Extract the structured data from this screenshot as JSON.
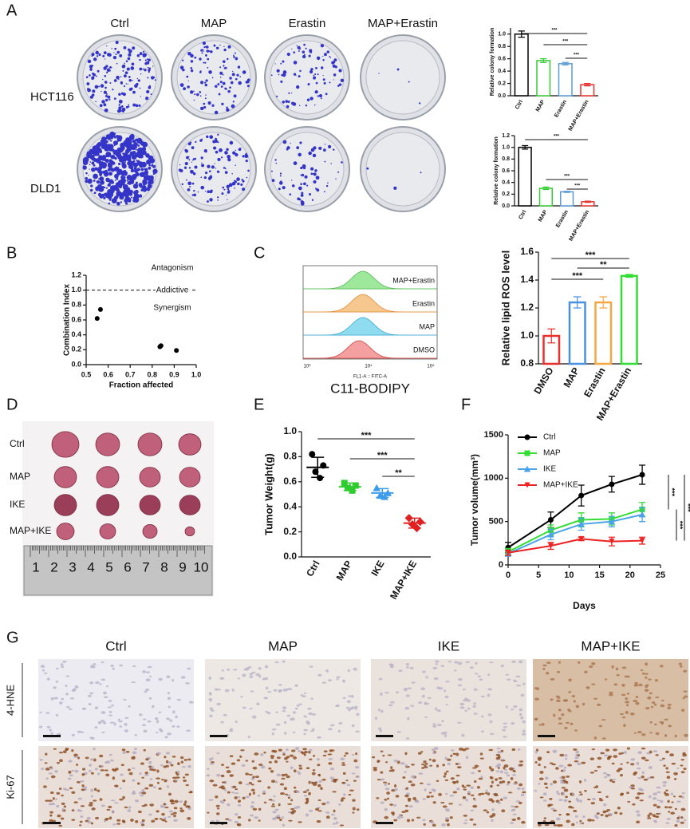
{
  "panels": [
    "A",
    "B",
    "C",
    "D",
    "E",
    "F",
    "G"
  ],
  "colony": {
    "columns": [
      "Ctrl",
      "MAP",
      "Erastin",
      "MAP+Erastin"
    ],
    "rows": [
      "HCT116",
      "DLD1"
    ]
  },
  "flow": {
    "samples": [
      "MAP+Erastin",
      "Erastin",
      "MAP",
      "DMSO"
    ],
    "x_label": "FL1-A :: FITC-A",
    "x_ticks": [
      "10³",
      "10⁴",
      "10⁵"
    ],
    "title": "C11-BODIPY"
  },
  "tumors": {
    "rows": [
      "Ctrl",
      "MAP",
      "IKE",
      "MAP+IKE"
    ],
    "ruler": [
      "1",
      "2",
      "3",
      "4",
      "5",
      "6",
      "7",
      "8",
      "9",
      "10"
    ]
  },
  "ihc": {
    "columns": [
      "Ctrl",
      "MAP",
      "IKE",
      "MAP+IKE"
    ],
    "rows": [
      "4-HNE",
      "Ki-67"
    ]
  },
  "chart_data": [
    {
      "type": "bar",
      "y_label": "Relative colony formation",
      "categories": [
        "Ctrl",
        "MAP",
        "Erastin",
        "MAP+Erastin"
      ],
      "values": [
        1.0,
        0.57,
        0.52,
        0.18
      ],
      "errors": [
        0.05,
        0.03,
        0.02,
        0.02
      ],
      "colors": [
        "#000000",
        "#33cc33",
        "#5b9bd5",
        "#e8312f"
      ],
      "ylim": [
        0,
        1.1
      ],
      "yticks": [
        {
          "value": 0,
          "label": "0.0"
        },
        0.2,
        0.4,
        0.6,
        0.8,
        {
          "value": 1,
          "label": "1.0"
        }
      ],
      "annotations": [
        "***",
        "***",
        "***"
      ]
    },
    {
      "type": "bar",
      "y_label": "Relative colony formation",
      "categories": [
        "Ctrl",
        "MAP",
        "Erastin",
        "MAP+Erastin"
      ],
      "values": [
        1.0,
        0.3,
        0.24,
        0.07
      ],
      "errors": [
        0.03,
        0.02,
        0.01,
        0.01
      ],
      "colors": [
        "#000000",
        "#33cc33",
        "#5b9bd5",
        "#e8312f"
      ],
      "ylim": [
        0,
        1.2
      ],
      "yticks": [
        {
          "value": 0,
          "label": "0.0"
        },
        0.2,
        0.4,
        0.6,
        0.8,
        {
          "value": 1,
          "label": "1.0"
        },
        1.2
      ],
      "annotations": [
        "***",
        "***",
        "***"
      ]
    },
    {
      "type": "scatter",
      "y_label": "Combination Index",
      "x_label": "Fraction affected",
      "x": [
        0.55,
        0.565,
        0.835,
        0.84,
        0.91
      ],
      "values": [
        0.62,
        0.74,
        0.24,
        0.255,
        0.19
      ],
      "color": "#000000",
      "xlim": [
        0.5,
        1.0
      ],
      "xticks": [
        0.5,
        0.6,
        0.7,
        0.8,
        0.9,
        {
          "value": 1,
          "label": "1.0"
        }
      ],
      "ylim": [
        0,
        1.2
      ],
      "yticks": [
        {
          "value": 0,
          "label": "0.0"
        },
        0.2,
        0.4,
        0.6,
        0.8,
        {
          "value": 1,
          "label": "1.0"
        },
        1.2
      ],
      "hline": 1,
      "annotations": [
        "Antagonism",
        "Addictive",
        "Synergism"
      ]
    },
    {
      "type": "bar",
      "y_label": "Relative lipid ROS level",
      "categories": [
        "DMSO",
        "MAP",
        "Erastin",
        "MAP+Erastin"
      ],
      "values": [
        1.0,
        1.24,
        1.24,
        1.43
      ],
      "errors": [
        0.05,
        0.04,
        0.04,
        0.01
      ],
      "colors": [
        "#e8312f",
        "#4a90e2",
        "#f5a742",
        "#33dd33"
      ],
      "ylim": [
        0.8,
        1.6
      ],
      "yticks": [
        0.8,
        {
          "value": 1,
          "label": "1.0"
        },
        1.2,
        1.4,
        1.6
      ],
      "annotations": [
        "***",
        "***",
        "**"
      ]
    },
    {
      "type": "dot",
      "y_label": "Tumor Weight(g)",
      "categories": [
        "Ctrl",
        "MAP",
        "IKE",
        "MAP+IKE"
      ],
      "points": [
        [
          0.82,
          0.73,
          0.68,
          0.63
        ],
        [
          0.59,
          0.57,
          0.55,
          0.53
        ],
        [
          0.55,
          0.51,
          0.49,
          0.48
        ],
        [
          0.31,
          0.28,
          0.26,
          0.23
        ]
      ],
      "means": [
        0.715,
        0.56,
        0.51,
        0.27
      ],
      "errors": [
        0.08,
        0.03,
        0.035,
        0.04
      ],
      "colors": [
        "#000000",
        "#2ecc2e",
        "#3d9be9",
        "#e02020"
      ],
      "markers": [
        "circle",
        "square",
        "triangle",
        "diamond"
      ],
      "ylim": [
        0,
        1.0
      ],
      "yticks": [
        {
          "value": 0,
          "label": "0.0"
        },
        0.2,
        0.4,
        0.6,
        0.8,
        {
          "value": 1,
          "label": "1.0"
        }
      ],
      "annotations": [
        "***",
        "***",
        "**"
      ]
    },
    {
      "type": "line",
      "y_label": "Tumor volume(mm³)",
      "x_label": "Days",
      "x": [
        0,
        7,
        12,
        17,
        22
      ],
      "xlim": [
        0,
        25
      ],
      "xticks": [
        0,
        5,
        10,
        15,
        20,
        25
      ],
      "ylim": [
        0,
        1500
      ],
      "yticks": [
        0,
        500,
        1000,
        1500
      ],
      "legend": "upper left",
      "series": [
        {
          "name": "Ctrl",
          "color": "#000000",
          "marker": "circle",
          "values": [
            200,
            520,
            800,
            930,
            1040
          ],
          "errors": [
            60,
            90,
            120,
            90,
            110
          ]
        },
        {
          "name": "MAP",
          "color": "#33dd33",
          "marker": "square",
          "values": [
            150,
            400,
            520,
            530,
            640
          ],
          "errors": [
            40,
            60,
            80,
            70,
            80
          ]
        },
        {
          "name": "IKE",
          "color": "#4aa3e8",
          "marker": "triangle",
          "values": [
            130,
            350,
            470,
            500,
            580
          ],
          "errors": [
            30,
            60,
            70,
            60,
            80
          ]
        },
        {
          "name": "MAP+IKE",
          "color": "#ee2222",
          "marker": "triangle-down",
          "values": [
            140,
            220,
            300,
            270,
            280
          ],
          "errors": [
            30,
            40,
            20,
            50,
            40
          ]
        }
      ],
      "annotations": [
        "***",
        "***",
        "***"
      ]
    }
  ]
}
